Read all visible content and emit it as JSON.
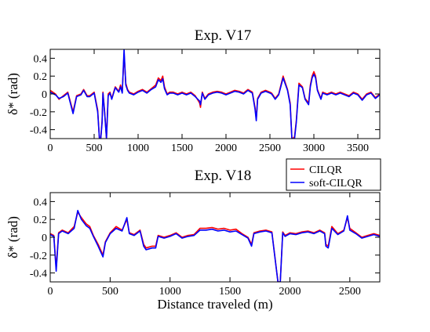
{
  "chart_data": [
    {
      "type": "line",
      "title": "Exp. V17",
      "xlabel": "",
      "ylabel": "δ* (rad)",
      "xlim": [
        0,
        3750
      ],
      "ylim": [
        -0.5,
        0.5
      ],
      "xticks": [
        0,
        500,
        1000,
        1500,
        2000,
        2500,
        3000,
        3500
      ],
      "yticks": [
        0.4,
        0.2,
        0,
        -0.2,
        -0.4
      ],
      "xtick_labels": [
        "0",
        "500",
        "1000",
        "1500",
        "2000",
        "2500",
        "3000",
        "3500"
      ],
      "ytick_labels": [
        "0.4",
        "0.2",
        "0",
        "-0.2",
        "-0.4"
      ],
      "series": [
        {
          "name": "CILQR",
          "color": "#ff0000",
          "x": [
            0,
            60,
            100,
            150,
            200,
            260,
            300,
            350,
            380,
            420,
            450,
            500,
            540,
            560,
            575,
            590,
            600,
            620,
            640,
            660,
            680,
            700,
            740,
            780,
            800,
            820,
            840,
            860,
            880,
            900,
            950,
            1000,
            1050,
            1100,
            1150,
            1200,
            1230,
            1260,
            1280,
            1300,
            1330,
            1360,
            1400,
            1450,
            1500,
            1550,
            1600,
            1650,
            1700,
            1710,
            1730,
            1760,
            1800,
            1850,
            1900,
            1950,
            2000,
            2050,
            2100,
            2150,
            2200,
            2250,
            2300,
            2330,
            2345,
            2360,
            2400,
            2450,
            2500,
            2520,
            2540,
            2560,
            2600,
            2650,
            2700,
            2730,
            2750,
            2760,
            2780,
            2800,
            2830,
            2870,
            2900,
            2940,
            2960,
            2980,
            3000,
            3020,
            3040,
            3060,
            3080,
            3100,
            3150,
            3200,
            3250,
            3300,
            3350,
            3400,
            3450,
            3500,
            3550,
            3600,
            3650,
            3700,
            3750
          ],
          "y": [
            0.04,
            0,
            -0.06,
            -0.02,
            0.02,
            -0.2,
            -0.02,
            0,
            0.05,
            -0.02,
            -0.02,
            0.02,
            -0.18,
            -0.5,
            -0.5,
            -0.3,
            0.02,
            -0.2,
            -0.5,
            0.0,
            0.02,
            -0.05,
            0.08,
            0.03,
            0.1,
            0.02,
            0.45,
            0.12,
            0.05,
            0.02,
            0,
            0.03,
            0.05,
            0.02,
            0.06,
            0.1,
            0.18,
            0.15,
            0.2,
            0.08,
            0,
            0.02,
            0.02,
            0,
            0.02,
            0,
            0.02,
            -0.02,
            -0.1,
            -0.15,
            0.02,
            -0.05,
            0,
            0.02,
            0.03,
            0.02,
            0,
            0.02,
            0.04,
            0.03,
            0.01,
            0.05,
            0.02,
            -0.15,
            -0.28,
            -0.05,
            0.02,
            0.04,
            0.02,
            0.01,
            -0.02,
            -0.05,
            0,
            0.2,
            0.05,
            -0.1,
            -0.5,
            -0.5,
            -0.48,
            -0.3,
            0.12,
            0.08,
            -0.05,
            -0.1,
            0.1,
            0.2,
            0.25,
            0.2,
            0.05,
            0,
            -0.05,
            0.02,
            0,
            0.02,
            0,
            0.02,
            0,
            -0.02,
            0.02,
            0,
            -0.06,
            0,
            0.02,
            -0.04,
            0
          ]
        },
        {
          "name": "soft-CILQR",
          "color": "#0000ff",
          "x": [
            0,
            60,
            100,
            150,
            200,
            260,
            300,
            350,
            380,
            420,
            450,
            500,
            540,
            560,
            575,
            590,
            600,
            620,
            640,
            660,
            680,
            700,
            740,
            780,
            800,
            820,
            840,
            860,
            880,
            900,
            950,
            1000,
            1050,
            1100,
            1150,
            1200,
            1230,
            1260,
            1280,
            1300,
            1330,
            1360,
            1400,
            1450,
            1500,
            1550,
            1600,
            1650,
            1700,
            1710,
            1730,
            1760,
            1800,
            1850,
            1900,
            1950,
            2000,
            2050,
            2100,
            2150,
            2200,
            2250,
            2300,
            2330,
            2345,
            2360,
            2400,
            2450,
            2500,
            2520,
            2540,
            2560,
            2600,
            2650,
            2700,
            2730,
            2750,
            2760,
            2780,
            2800,
            2830,
            2870,
            2900,
            2940,
            2960,
            2980,
            3000,
            3020,
            3040,
            3060,
            3080,
            3100,
            3150,
            3200,
            3250,
            3300,
            3350,
            3400,
            3450,
            3500,
            3550,
            3600,
            3650,
            3700,
            3750
          ],
          "y": [
            0.02,
            -0.01,
            -0.05,
            -0.03,
            0.01,
            -0.22,
            -0.03,
            -0.01,
            0.04,
            -0.03,
            -0.03,
            0.01,
            -0.2,
            -0.5,
            -0.5,
            -0.32,
            0.01,
            -0.22,
            -0.5,
            -0.02,
            0.01,
            -0.06,
            0.07,
            0.02,
            0.08,
            0.01,
            0.5,
            0.1,
            0.04,
            0.01,
            -0.01,
            0.02,
            0.04,
            0.01,
            0.05,
            0.08,
            0.16,
            0.13,
            0.17,
            0.06,
            -0.01,
            0.01,
            0.01,
            -0.01,
            0.01,
            -0.01,
            0.01,
            -0.03,
            -0.08,
            -0.12,
            0.01,
            -0.06,
            -0.01,
            0.01,
            0.02,
            0.01,
            -0.01,
            0.01,
            0.03,
            0.02,
            0,
            0.04,
            0.01,
            -0.17,
            -0.3,
            -0.06,
            0.01,
            0.03,
            0.01,
            0,
            -0.03,
            -0.06,
            -0.01,
            0.18,
            0.04,
            -0.12,
            -0.5,
            -0.5,
            -0.5,
            -0.32,
            0.1,
            0.07,
            -0.06,
            -0.12,
            0.08,
            0.18,
            0.22,
            0.18,
            0.04,
            -0.01,
            -0.06,
            0.01,
            -0.01,
            0.01,
            -0.01,
            0.01,
            -0.01,
            -0.03,
            0.01,
            -0.01,
            -0.07,
            -0.01,
            0.01,
            -0.05,
            -0.01
          ]
        }
      ]
    },
    {
      "type": "line",
      "title": "Exp. V18",
      "xlabel": "Distance traveled (m)",
      "ylabel": "δ* (rad)",
      "xlim": [
        0,
        2750
      ],
      "ylim": [
        -0.5,
        0.5
      ],
      "xticks": [
        0,
        500,
        1000,
        1500,
        2000,
        2500
      ],
      "yticks": [
        0.4,
        0.2,
        0,
        -0.2,
        -0.4
      ],
      "xtick_labels": [
        "0",
        "500",
        "1000",
        "1500",
        "2000",
        "2500"
      ],
      "ytick_labels": [
        "0.4",
        "0.2",
        "0",
        "-0.2",
        "-0.4"
      ],
      "legend": {
        "position": "top-right",
        "entries": [
          "CILQR",
          "soft-CILQR"
        ]
      },
      "series": [
        {
          "name": "CILQR",
          "color": "#ff0000",
          "x": [
            0,
            30,
            50,
            70,
            100,
            150,
            200,
            230,
            260,
            300,
            330,
            360,
            400,
            440,
            460,
            500,
            550,
            600,
            640,
            660,
            700,
            750,
            780,
            800,
            850,
            880,
            900,
            950,
            1000,
            1050,
            1100,
            1150,
            1200,
            1250,
            1300,
            1350,
            1400,
            1450,
            1500,
            1550,
            1600,
            1650,
            1680,
            1700,
            1750,
            1800,
            1850,
            1900,
            1920,
            1940,
            1960,
            2000,
            2050,
            2100,
            2150,
            2200,
            2250,
            2290,
            2300,
            2320,
            2350,
            2400,
            2450,
            2480,
            2500,
            2550,
            2600,
            2650,
            2700,
            2750
          ],
          "y": [
            0.04,
            0.02,
            -0.35,
            0.05,
            0.08,
            0.05,
            0.12,
            0.28,
            0.22,
            0.15,
            0.12,
            0.02,
            -0.08,
            -0.2,
            -0.05,
            0.05,
            0.12,
            0.08,
            0.2,
            0.05,
            0.03,
            0.08,
            -0.08,
            -0.12,
            -0.1,
            -0.1,
            0.02,
            0,
            0.02,
            0.05,
            0,
            0.02,
            0.03,
            0.1,
            0.1,
            0.11,
            0.09,
            0.1,
            0.08,
            0.09,
            0.04,
            0,
            -0.08,
            0.05,
            0.07,
            0.08,
            0.06,
            -0.5,
            -0.5,
            0.06,
            0.02,
            0.05,
            0.04,
            0.06,
            0.07,
            0.05,
            0.08,
            0.05,
            -0.08,
            -0.1,
            0.12,
            0.04,
            0.08,
            0.22,
            0.1,
            0.05,
            0,
            0.02,
            0.04,
            0.02
          ]
        },
        {
          "name": "soft-CILQR",
          "color": "#0000ff",
          "x": [
            0,
            30,
            50,
            70,
            100,
            150,
            200,
            230,
            260,
            300,
            330,
            360,
            400,
            440,
            460,
            500,
            550,
            600,
            640,
            660,
            700,
            750,
            780,
            800,
            850,
            880,
            900,
            950,
            1000,
            1050,
            1100,
            1150,
            1200,
            1250,
            1300,
            1350,
            1400,
            1450,
            1500,
            1550,
            1600,
            1650,
            1680,
            1700,
            1750,
            1800,
            1850,
            1900,
            1920,
            1940,
            1960,
            2000,
            2050,
            2100,
            2150,
            2200,
            2250,
            2290,
            2300,
            2320,
            2350,
            2400,
            2450,
            2480,
            2500,
            2550,
            2600,
            2650,
            2700,
            2750
          ],
          "y": [
            0.03,
            0.01,
            -0.38,
            0.04,
            0.07,
            0.04,
            0.1,
            0.3,
            0.2,
            0.13,
            0.1,
            0.01,
            -0.1,
            -0.22,
            -0.06,
            0.04,
            0.1,
            0.07,
            0.22,
            0.04,
            0.02,
            0.07,
            -0.1,
            -0.14,
            -0.12,
            -0.12,
            0.01,
            -0.01,
            0.01,
            0.04,
            -0.01,
            0.01,
            0.02,
            0.08,
            0.08,
            0.09,
            0.07,
            0.08,
            0.06,
            0.07,
            0.03,
            -0.01,
            -0.1,
            0.04,
            0.06,
            0.07,
            0.05,
            -0.5,
            -0.5,
            0.05,
            0.01,
            0.04,
            0.03,
            0.05,
            0.06,
            0.04,
            0.07,
            0.04,
            -0.1,
            -0.12,
            0.1,
            0.03,
            0.07,
            0.24,
            0.08,
            0.04,
            -0.01,
            0.01,
            0.03,
            0.01
          ]
        }
      ]
    }
  ]
}
